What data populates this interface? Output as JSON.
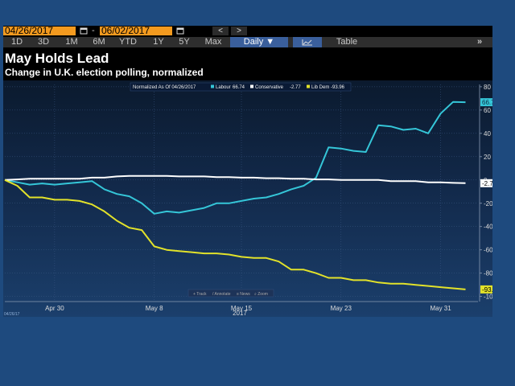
{
  "date_range": {
    "start": "04/26/2017",
    "separator": "-",
    "end": "06/02/2017"
  },
  "nav": {
    "prev": "<",
    "next": ">"
  },
  "tabs": [
    "1D",
    "3D",
    "1M",
    "6M",
    "YTD",
    "1Y",
    "5Y",
    "Max"
  ],
  "view_select": "Daily ▼",
  "table_label": "Table",
  "expand_label": "»",
  "headline": "May Holds Lead",
  "subtitle": "Change in U.K. election polling, normalized",
  "colors": {
    "labour": "#35c6d8",
    "conservative": "#ffffff",
    "libdem": "#e2e22a",
    "date_field": "#f39a1f"
  },
  "toolbar": [
    "+ Track",
    "/ Annotate",
    "≡ News",
    "⌕ Zoom"
  ],
  "corner_stamp": "04/26/17",
  "chart_data": {
    "type": "line",
    "legend_title": "Normalized As Of 04/26/2017",
    "x_dates": [
      "2017-04-26",
      "2017-04-27",
      "2017-04-28",
      "2017-04-29",
      "2017-04-30",
      "2017-05-01",
      "2017-05-02",
      "2017-05-03",
      "2017-05-04",
      "2017-05-05",
      "2017-05-06",
      "2017-05-07",
      "2017-05-08",
      "2017-05-09",
      "2017-05-10",
      "2017-05-11",
      "2017-05-12",
      "2017-05-13",
      "2017-05-14",
      "2017-05-15",
      "2017-05-16",
      "2017-05-17",
      "2017-05-18",
      "2017-05-19",
      "2017-05-20",
      "2017-05-21",
      "2017-05-22",
      "2017-05-23",
      "2017-05-24",
      "2017-05-25",
      "2017-05-26",
      "2017-05-27",
      "2017-05-28",
      "2017-05-29",
      "2017-05-30",
      "2017-05-31",
      "2017-06-01",
      "2017-06-02"
    ],
    "series": [
      {
        "name": "Labour",
        "last_label": "66.74",
        "end_label": "66.74",
        "values": [
          0,
          -2,
          -4,
          -3,
          -4,
          -3,
          -2,
          -1,
          -8,
          -12,
          -14,
          -20,
          -29,
          -27,
          -28,
          -26,
          -24,
          -20,
          -20,
          -18,
          -16,
          -15,
          -12,
          -8,
          -5,
          2,
          28,
          27,
          25,
          24,
          47,
          46,
          43,
          44,
          40,
          57,
          67,
          66.74
        ]
      },
      {
        "name": "Conservative",
        "last_label": "-2.77",
        "end_label": "-2.77",
        "values": [
          0,
          0.5,
          1,
          1,
          1,
          1,
          1,
          2,
          2,
          3,
          3.5,
          3.5,
          3.5,
          3.5,
          3,
          3,
          3,
          2.5,
          2.5,
          2,
          2,
          1.5,
          1.5,
          1,
          1,
          0.5,
          0.5,
          0,
          0,
          0,
          0,
          -1,
          -1,
          -1,
          -2,
          -2,
          -2.5,
          -2.77
        ]
      },
      {
        "name": "Lib Dem",
        "last_label": "-93.96",
        "end_label": "-93.96",
        "values": [
          0,
          -5,
          -15,
          -15,
          -17,
          -17,
          -18,
          -21,
          -27,
          -35,
          -41,
          -43,
          -57,
          -60,
          -61,
          -62,
          -63,
          -63,
          -64,
          -66,
          -67,
          -67,
          -70,
          -77,
          -77,
          -80,
          -84,
          -84,
          -86,
          -86,
          -88,
          -89,
          -89,
          -90,
          -91,
          -92,
          -93,
          -93.96
        ]
      }
    ],
    "x_ticks": [
      "Apr 30",
      "May 8",
      "May 15",
      "May 23",
      "May 31"
    ],
    "x_tick_dates": [
      "2017-04-30",
      "2017-05-08",
      "2017-05-15",
      "2017-05-23",
      "2017-05-31"
    ],
    "year_label": "2017",
    "y_ticks": [
      80,
      60,
      40,
      20,
      0,
      -20,
      -40,
      -60,
      -80,
      -100
    ],
    "ylim": [
      -103,
      82
    ]
  }
}
